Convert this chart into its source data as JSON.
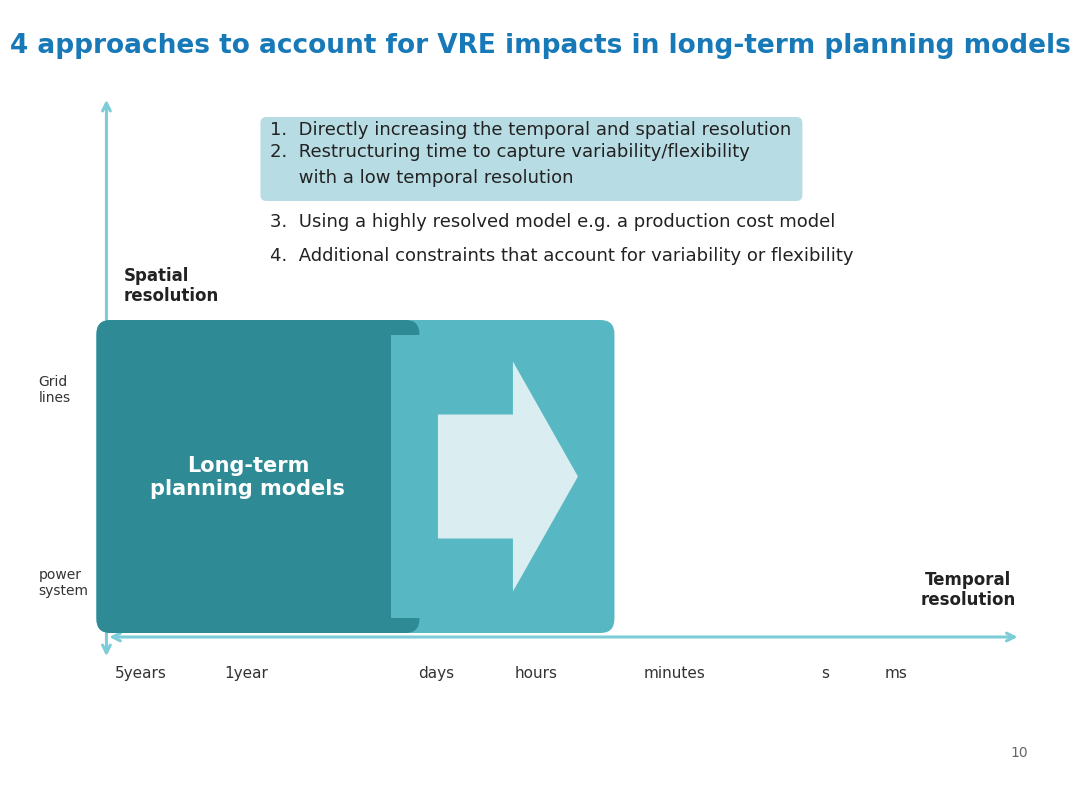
{
  "title": "4 approaches to account for VRE impacts in long-term planning models",
  "title_color": "#1779B8",
  "title_fontsize": 19,
  "bg_color": "#FFFFFF",
  "item1": "1.  Directly increasing the temporal and spatial resolution",
  "item2_line1": "2.  Restructuring time to capture variability/flexibility",
  "item2_line2": "     with a low temporal resolution",
  "item3": "3.  Using a highly resolved model e.g. a production cost model",
  "item4": "4.  Additional constraints that account for variability or flexibility",
  "item2_bg": "#B8DCE4",
  "box_dark": "#2E8B96",
  "box_light": "#57B8C4",
  "box_text": "Long-term\nplanning models",
  "box_text_color": "#FFFFFF",
  "spatial_label_bold": "Spatial\nresolution",
  "temporal_label": "Temporal\nresolution",
  "power_label": "power\nsystem",
  "grid_label": "Grid\nlines",
  "axis_color": "#7DCDD8",
  "x_ticks": [
    "5years",
    "1year",
    "days",
    "hours",
    "minutes",
    "s",
    "ms"
  ],
  "page_num": "10"
}
